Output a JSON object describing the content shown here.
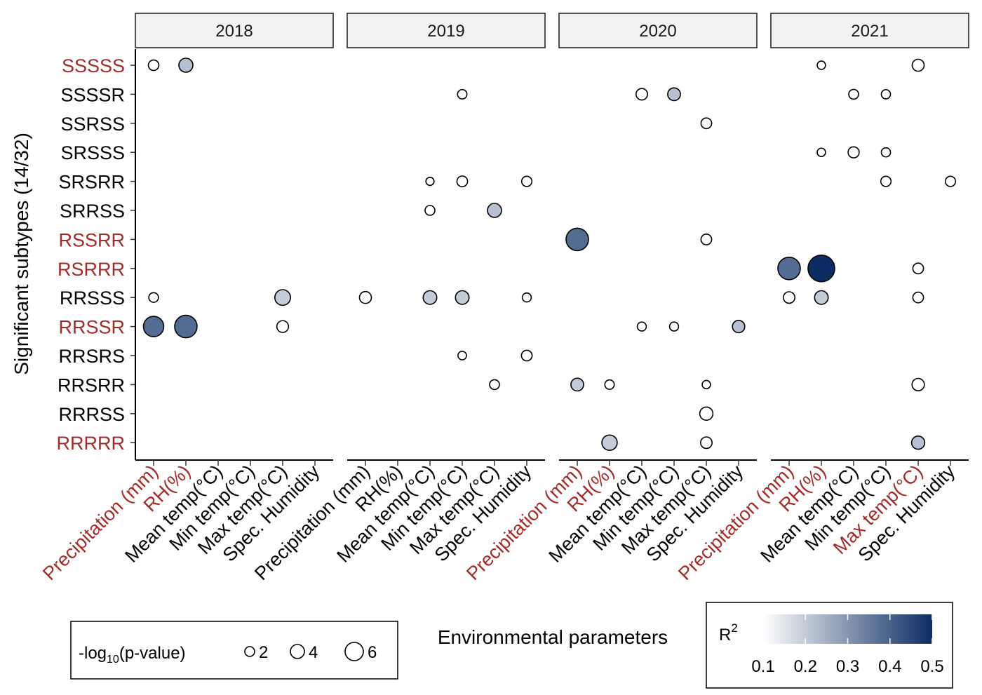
{
  "chart_data": {
    "type": "scatter",
    "xlabel": "Environmental parameters",
    "ylabel": "Significant subtypes (14/32)",
    "facets": [
      "2018",
      "2019",
      "2020",
      "2021"
    ],
    "x_categories": [
      "Precipitation (mm)",
      "RH(%)",
      "Mean temp(°C)",
      "Min temp(°C)",
      "Max temp(°C)",
      "Spec. Humidity"
    ],
    "y_categories": [
      "SSSSS",
      "SSSSR",
      "SSRSS",
      "SRSSS",
      "SRSRR",
      "SRRSS",
      "RSSRR",
      "RSRRR",
      "RRSSS",
      "RRSSR",
      "RRSRS",
      "RRSRR",
      "RRRSS",
      "RRRRR"
    ],
    "highlighted_subtypes": [
      "SSSSS",
      "RSSRR",
      "RSRRR",
      "RRSSR",
      "RRRRR"
    ],
    "highlighted_x_labels": {
      "2018": [
        "Precipitation (mm)",
        "RH(%)"
      ],
      "2019": [],
      "2020": [
        "Precipitation (mm)",
        "RH(%)"
      ],
      "2021": [
        "Precipitation (mm)",
        "RH(%)",
        "Max temp(°C)"
      ]
    },
    "highlight_color": "#a52a2a",
    "size_legend": {
      "title_prefix": "-log",
      "title_sub": "10",
      "title_suffix": "(p-value)",
      "values": [
        2,
        4,
        6
      ],
      "labels": [
        "2",
        "4",
        "6"
      ]
    },
    "color_legend": {
      "title": "R",
      "title_sup": "2",
      "range": [
        0.1,
        0.5
      ],
      "ticks": [
        "0.1",
        "0.2",
        "0.3",
        "0.4",
        "0.5"
      ],
      "low_color": "#ffffff",
      "high_color": "#0c2d63"
    },
    "points": [
      {
        "facet": "2018",
        "x": "Precipitation (mm)",
        "y": "SSSSS",
        "neglogp": 2.3,
        "r2": 0.1
      },
      {
        "facet": "2018",
        "x": "RH(%)",
        "y": "SSSSS",
        "neglogp": 4.0,
        "r2": 0.22
      },
      {
        "facet": "2018",
        "x": "Precipitation (mm)",
        "y": "RRSSS",
        "neglogp": 1.9,
        "r2": 0.1
      },
      {
        "facet": "2018",
        "x": "Max temp(°C)",
        "y": "RRSSS",
        "neglogp": 4.8,
        "r2": 0.2
      },
      {
        "facet": "2018",
        "x": "Precipitation (mm)",
        "y": "RRSSR",
        "neglogp": 7.0,
        "r2": 0.38
      },
      {
        "facet": "2018",
        "x": "RH(%)",
        "y": "RRSSR",
        "neglogp": 8.0,
        "r2": 0.38
      },
      {
        "facet": "2018",
        "x": "Max temp(°C)",
        "y": "RRSSR",
        "neglogp": 2.9,
        "r2": 0.1
      },
      {
        "facet": "2019",
        "x": "Mean temp(°C)",
        "y": "SRSRR",
        "neglogp": 1.2,
        "r2": 0.1
      },
      {
        "facet": "2019",
        "x": "Min temp(°C)",
        "y": "SSSSR",
        "neglogp": 1.8,
        "r2": 0.1
      },
      {
        "facet": "2019",
        "x": "Min temp(°C)",
        "y": "SRSRR",
        "neglogp": 2.4,
        "r2": 0.1
      },
      {
        "facet": "2019",
        "x": "Spec. Humidity",
        "y": "SRSRR",
        "neglogp": 2.2,
        "r2": 0.1
      },
      {
        "facet": "2019",
        "x": "Mean temp(°C)",
        "y": "SRRSS",
        "neglogp": 2.0,
        "r2": 0.1
      },
      {
        "facet": "2019",
        "x": "Max temp(°C)",
        "y": "SRRSS",
        "neglogp": 4.0,
        "r2": 0.22
      },
      {
        "facet": "2019",
        "x": "Precipitation (mm)",
        "y": "RRSSS",
        "neglogp": 3.0,
        "r2": 0.1
      },
      {
        "facet": "2019",
        "x": "Mean temp(°C)",
        "y": "RRSSS",
        "neglogp": 3.8,
        "r2": 0.2
      },
      {
        "facet": "2019",
        "x": "Min temp(°C)",
        "y": "RRSSS",
        "neglogp": 3.8,
        "r2": 0.2
      },
      {
        "facet": "2019",
        "x": "Spec. Humidity",
        "y": "RRSSS",
        "neglogp": 1.6,
        "r2": 0.1
      },
      {
        "facet": "2019",
        "x": "Min temp(°C)",
        "y": "RRSRS",
        "neglogp": 1.4,
        "r2": 0.1
      },
      {
        "facet": "2019",
        "x": "Spec. Humidity",
        "y": "RRSRS",
        "neglogp": 2.4,
        "r2": 0.1
      },
      {
        "facet": "2019",
        "x": "Max temp(°C)",
        "y": "RRSRR",
        "neglogp": 2.0,
        "r2": 0.1
      },
      {
        "facet": "2020",
        "x": "Mean temp(°C)",
        "y": "SSSSR",
        "neglogp": 2.8,
        "r2": 0.1
      },
      {
        "facet": "2020",
        "x": "Min temp(°C)",
        "y": "SSSSR",
        "neglogp": 3.4,
        "r2": 0.22
      },
      {
        "facet": "2020",
        "x": "Max temp(°C)",
        "y": "SSRSS",
        "neglogp": 2.4,
        "r2": 0.1
      },
      {
        "facet": "2020",
        "x": "Precipitation (mm)",
        "y": "RSSRR",
        "neglogp": 8.0,
        "r2": 0.38
      },
      {
        "facet": "2020",
        "x": "Max temp(°C)",
        "y": "RSSRR",
        "neglogp": 2.4,
        "r2": 0.1
      },
      {
        "facet": "2020",
        "x": "Mean temp(°C)",
        "y": "RRSSR",
        "neglogp": 1.6,
        "r2": 0.1
      },
      {
        "facet": "2020",
        "x": "Min temp(°C)",
        "y": "RRSSR",
        "neglogp": 1.6,
        "r2": 0.1
      },
      {
        "facet": "2020",
        "x": "Spec. Humidity",
        "y": "RRSSR",
        "neglogp": 3.2,
        "r2": 0.22
      },
      {
        "facet": "2020",
        "x": "Precipitation (mm)",
        "y": "RRSRR",
        "neglogp": 3.4,
        "r2": 0.2
      },
      {
        "facet": "2020",
        "x": "RH(%)",
        "y": "RRSRR",
        "neglogp": 1.8,
        "r2": 0.1
      },
      {
        "facet": "2020",
        "x": "Max temp(°C)",
        "y": "RRSRR",
        "neglogp": 1.3,
        "r2": 0.1
      },
      {
        "facet": "2020",
        "x": "Max temp(°C)",
        "y": "RRRSS",
        "neglogp": 3.6,
        "r2": 0.1
      },
      {
        "facet": "2020",
        "x": "RH(%)",
        "y": "RRRRR",
        "neglogp": 4.6,
        "r2": 0.2
      },
      {
        "facet": "2020",
        "x": "Max temp(°C)",
        "y": "RRRRR",
        "neglogp": 2.8,
        "r2": 0.1
      },
      {
        "facet": "2021",
        "x": "RH(%)",
        "y": "SSSSS",
        "neglogp": 1.3,
        "r2": 0.1
      },
      {
        "facet": "2021",
        "x": "Max temp(°C)",
        "y": "SSSSS",
        "neglogp": 3.0,
        "r2": 0.1
      },
      {
        "facet": "2021",
        "x": "Mean temp(°C)",
        "y": "SSSSR",
        "neglogp": 2.0,
        "r2": 0.1
      },
      {
        "facet": "2021",
        "x": "Min temp(°C)",
        "y": "SSSSR",
        "neglogp": 1.7,
        "r2": 0.1
      },
      {
        "facet": "2021",
        "x": "RH(%)",
        "y": "SRSSS",
        "neglogp": 1.3,
        "r2": 0.1
      },
      {
        "facet": "2021",
        "x": "Mean temp(°C)",
        "y": "SRSSS",
        "neglogp": 2.6,
        "r2": 0.1
      },
      {
        "facet": "2021",
        "x": "Min temp(°C)",
        "y": "SRSSS",
        "neglogp": 1.7,
        "r2": 0.1
      },
      {
        "facet": "2021",
        "x": "Min temp(°C)",
        "y": "SRSRR",
        "neglogp": 2.2,
        "r2": 0.1
      },
      {
        "facet": "2021",
        "x": "Spec. Humidity",
        "y": "SRSRR",
        "neglogp": 2.2,
        "r2": 0.1
      },
      {
        "facet": "2021",
        "x": "Precipitation (mm)",
        "y": "RSRRR",
        "neglogp": 8.0,
        "r2": 0.38
      },
      {
        "facet": "2021",
        "x": "RH(%)",
        "y": "RSRRR",
        "neglogp": 10.0,
        "r2": 0.5
      },
      {
        "facet": "2021",
        "x": "Max temp(°C)",
        "y": "RSRRR",
        "neglogp": 2.4,
        "r2": 0.1
      },
      {
        "facet": "2021",
        "x": "Precipitation (mm)",
        "y": "RRSSS",
        "neglogp": 2.8,
        "r2": 0.1
      },
      {
        "facet": "2021",
        "x": "RH(%)",
        "y": "RRSSS",
        "neglogp": 3.8,
        "r2": 0.2
      },
      {
        "facet": "2021",
        "x": "Max temp(°C)",
        "y": "RRSSS",
        "neglogp": 2.4,
        "r2": 0.1
      },
      {
        "facet": "2021",
        "x": "Max temp(°C)",
        "y": "RRSRR",
        "neglogp": 3.2,
        "r2": 0.1
      },
      {
        "facet": "2021",
        "x": "Max temp(°C)",
        "y": "RRRRR",
        "neglogp": 3.6,
        "r2": 0.22
      }
    ]
  }
}
